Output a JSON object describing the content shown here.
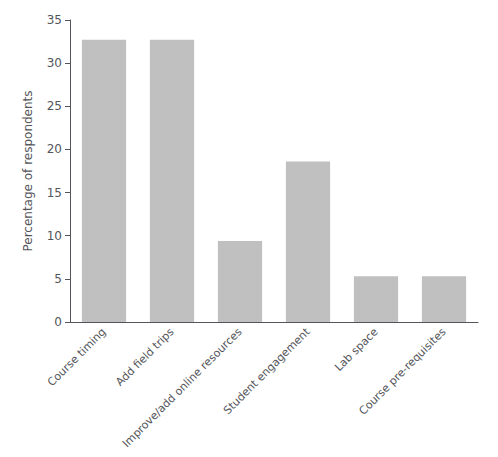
{
  "chart_data": {
    "type": "bar",
    "categories": [
      "Course timing",
      "Add field trips",
      "Improve/add online resources",
      "Student engagement",
      "Lab space",
      "Course pre-requisites"
    ],
    "values": [
      32.7,
      32.7,
      9.4,
      18.6,
      5.3,
      5.3
    ],
    "color": "#c0c0c0",
    "ylabel": "Percentage of respondents",
    "ylim": [
      0,
      35
    ],
    "yticks": [
      0,
      5,
      10,
      15,
      20,
      25,
      30,
      35
    ],
    "grid": false
  }
}
